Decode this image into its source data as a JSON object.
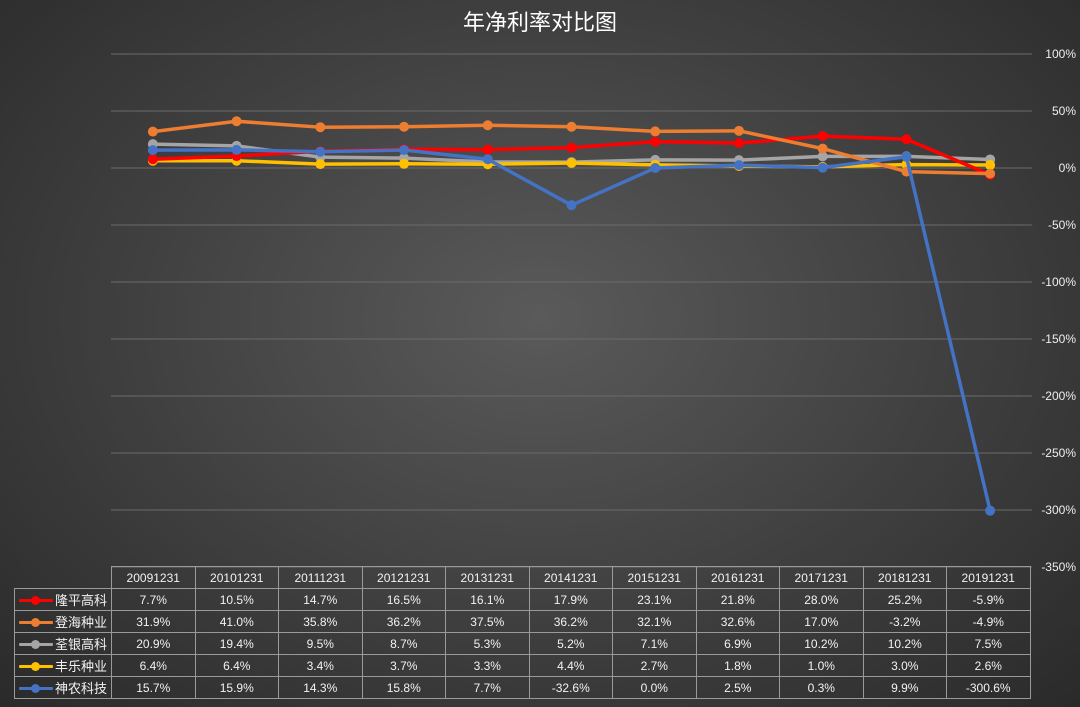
{
  "chart_data": {
    "type": "line",
    "title": "年净利率对比图",
    "categories": [
      "20091231",
      "20101231",
      "20111231",
      "20121231",
      "20131231",
      "20141231",
      "20151231",
      "20161231",
      "20171231",
      "20181231",
      "20191231"
    ],
    "ylim": [
      -350,
      100
    ],
    "yticks": [
      100,
      50,
      0,
      -50,
      -100,
      -150,
      -200,
      -250,
      -300,
      -350
    ],
    "ytick_labels": [
      "100%",
      "50%",
      "0%",
      "-50%",
      "-100%",
      "-150%",
      "-200%",
      "-250%",
      "-300%",
      "-350%"
    ],
    "grid": true,
    "legend": "bottom-table",
    "series": [
      {
        "name": "隆平高科",
        "color": "#ff0000",
        "values": [
          7.7,
          10.5,
          14.7,
          16.5,
          16.1,
          17.9,
          23.1,
          21.8,
          28.0,
          25.2,
          -5.9
        ],
        "labels": [
          "7.7%",
          "10.5%",
          "14.7%",
          "16.5%",
          "16.1%",
          "17.9%",
          "23.1%",
          "21.8%",
          "28.0%",
          "25.2%",
          "-5.9%"
        ]
      },
      {
        "name": "登海种业",
        "color": "#ed7d31",
        "values": [
          31.9,
          41.0,
          35.8,
          36.2,
          37.5,
          36.2,
          32.1,
          32.6,
          17.0,
          -3.2,
          -4.9
        ],
        "labels": [
          "31.9%",
          "41.0%",
          "35.8%",
          "36.2%",
          "37.5%",
          "36.2%",
          "32.1%",
          "32.6%",
          "17.0%",
          "-3.2%",
          "-4.9%"
        ]
      },
      {
        "name": "荃银高科",
        "color": "#a5a5a5",
        "values": [
          20.9,
          19.4,
          9.5,
          8.7,
          5.3,
          5.2,
          7.1,
          6.9,
          10.2,
          10.2,
          7.5
        ],
        "labels": [
          "20.9%",
          "19.4%",
          "9.5%",
          "8.7%",
          "5.3%",
          "5.2%",
          "7.1%",
          "6.9%",
          "10.2%",
          "10.2%",
          "7.5%"
        ]
      },
      {
        "name": "丰乐种业",
        "color": "#ffc000",
        "values": [
          6.4,
          6.4,
          3.4,
          3.7,
          3.3,
          4.4,
          2.7,
          1.8,
          1.0,
          3.0,
          2.6
        ],
        "labels": [
          "6.4%",
          "6.4%",
          "3.4%",
          "3.7%",
          "3.3%",
          "4.4%",
          "2.7%",
          "1.8%",
          "1.0%",
          "3.0%",
          "2.6%"
        ]
      },
      {
        "name": "神农科技",
        "color": "#4472c4",
        "values": [
          15.7,
          15.9,
          14.3,
          15.8,
          7.7,
          -32.6,
          0.0,
          2.5,
          0.3,
          9.9,
          -300.6
        ],
        "labels": [
          "15.7%",
          "15.9%",
          "14.3%",
          "15.8%",
          "7.7%",
          "-32.6%",
          "0.0%",
          "2.5%",
          "0.3%",
          "9.9%",
          "-300.6%"
        ]
      }
    ]
  }
}
